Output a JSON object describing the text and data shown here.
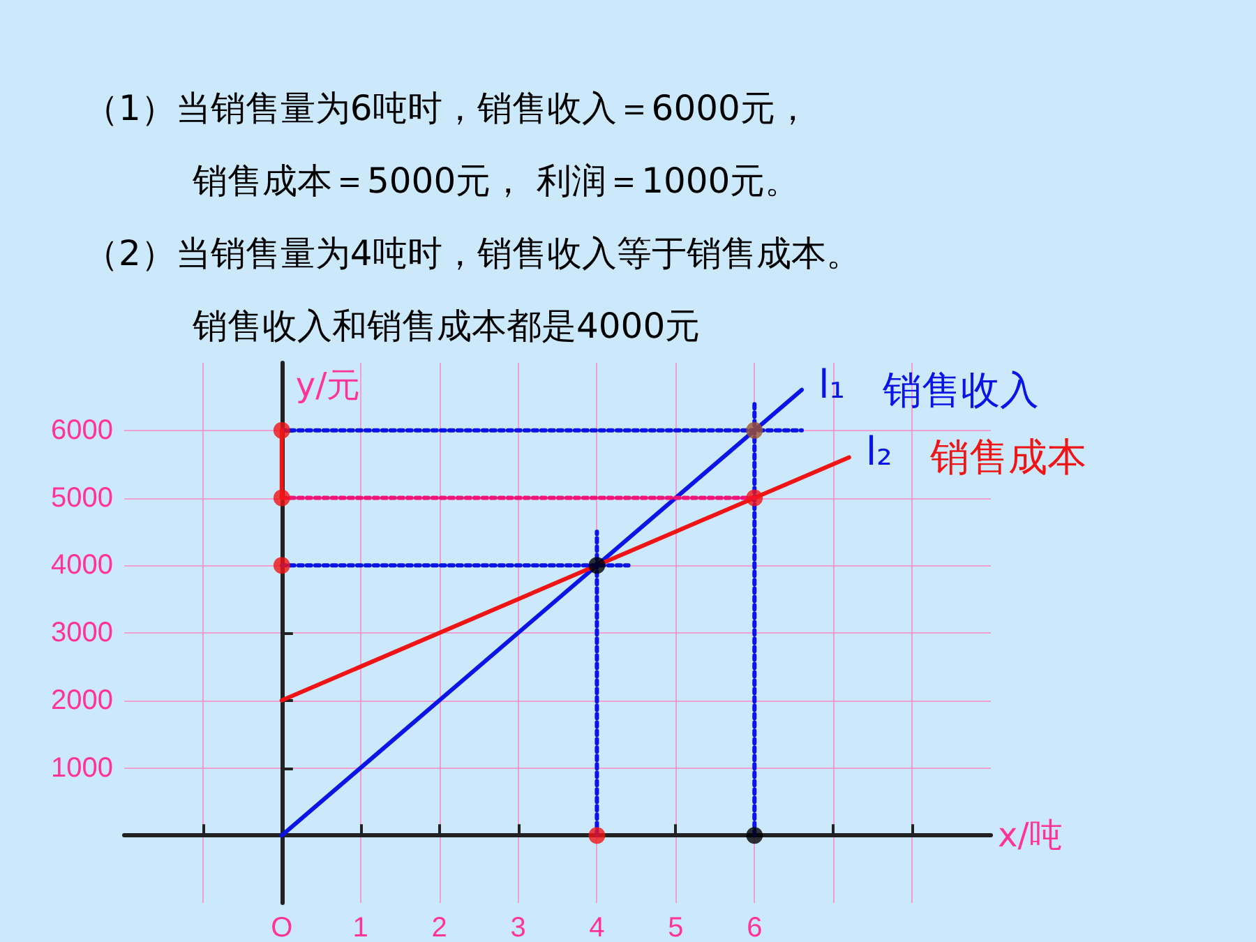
{
  "chart_data": {
    "type": "line",
    "annotations": [
      "（1）当销售量为6吨时，销售收入＝6000元，",
      "销售成本＝5000元， 利润＝1000元。",
      "（2）当销售量为4吨时，销售收入等于销售成本。",
      "销售收入和销售成本都是4000元",
      {
        "text": "l₁",
        "x": 6.6,
        "y": 6600
      },
      {
        "text": "l₂",
        "x": 7.2,
        "y": 5600
      }
    ],
    "xlabel": "x/吨",
    "ylabel": "y/元",
    "xlim": [
      -2,
      9
    ],
    "ylim": [
      -1000,
      7000
    ],
    "xticks": [
      {
        "value": -1,
        "label": null
      },
      {
        "value": 0,
        "label": "O"
      },
      1,
      2,
      3,
      4,
      5,
      6,
      {
        "value": 7,
        "label": null
      },
      {
        "value": 8,
        "label": null
      }
    ],
    "yticks": [
      {
        "value": 0,
        "label": null
      },
      1000,
      2000,
      3000,
      4000,
      5000,
      6000
    ],
    "grid": true,
    "legend": false,
    "marker": "none",
    "series": [
      {
        "name": "销售收入",
        "color": "#0a14e6",
        "x": [
          0,
          6.6
        ],
        "values": [
          0,
          6600
        ],
        "line_style": "solid"
      },
      {
        "name": "销售成本",
        "color": "#f01414",
        "x": [
          0,
          7.2
        ],
        "values": [
          2000,
          5600
        ],
        "line_style": "solid"
      },
      {
        "color": "#0a14e6",
        "x": [
          0,
          6.6
        ],
        "values": [
          6000,
          6000
        ],
        "line_style": "dotted"
      },
      {
        "color": "#0a14e6",
        "x": [
          0,
          4.4
        ],
        "values": [
          4000,
          4000
        ],
        "line_style": "dotted"
      },
      {
        "color": "#0a14e6",
        "x": [
          4,
          4
        ],
        "values": [
          0,
          4500
        ],
        "line_style": "dotted"
      },
      {
        "color": "#0a14e6",
        "x": [
          6,
          6
        ],
        "values": [
          0,
          6400
        ],
        "line_style": "dotted"
      },
      {
        "color": "#f01478",
        "x": [
          0,
          6
        ],
        "values": [
          5000,
          5000
        ],
        "line_style": "dotted"
      },
      {
        "color": "#f01414",
        "x": [
          0,
          0
        ],
        "values": [
          5000,
          6000
        ],
        "line_style": "solid"
      },
      {
        "type": "scatter",
        "marker": "circle",
        "x": [
          0,
          0,
          0,
          4,
          6,
          4,
          6,
          6
        ],
        "values": [
          6000,
          5000,
          4000,
          0,
          0,
          4000,
          6000,
          5000
        ],
        "colors": [
          "#f01414",
          "#f01414",
          "#f01414",
          "#f01414",
          "#000000",
          "#000000",
          "#a0522d",
          "#f01414"
        ]
      }
    ]
  }
}
